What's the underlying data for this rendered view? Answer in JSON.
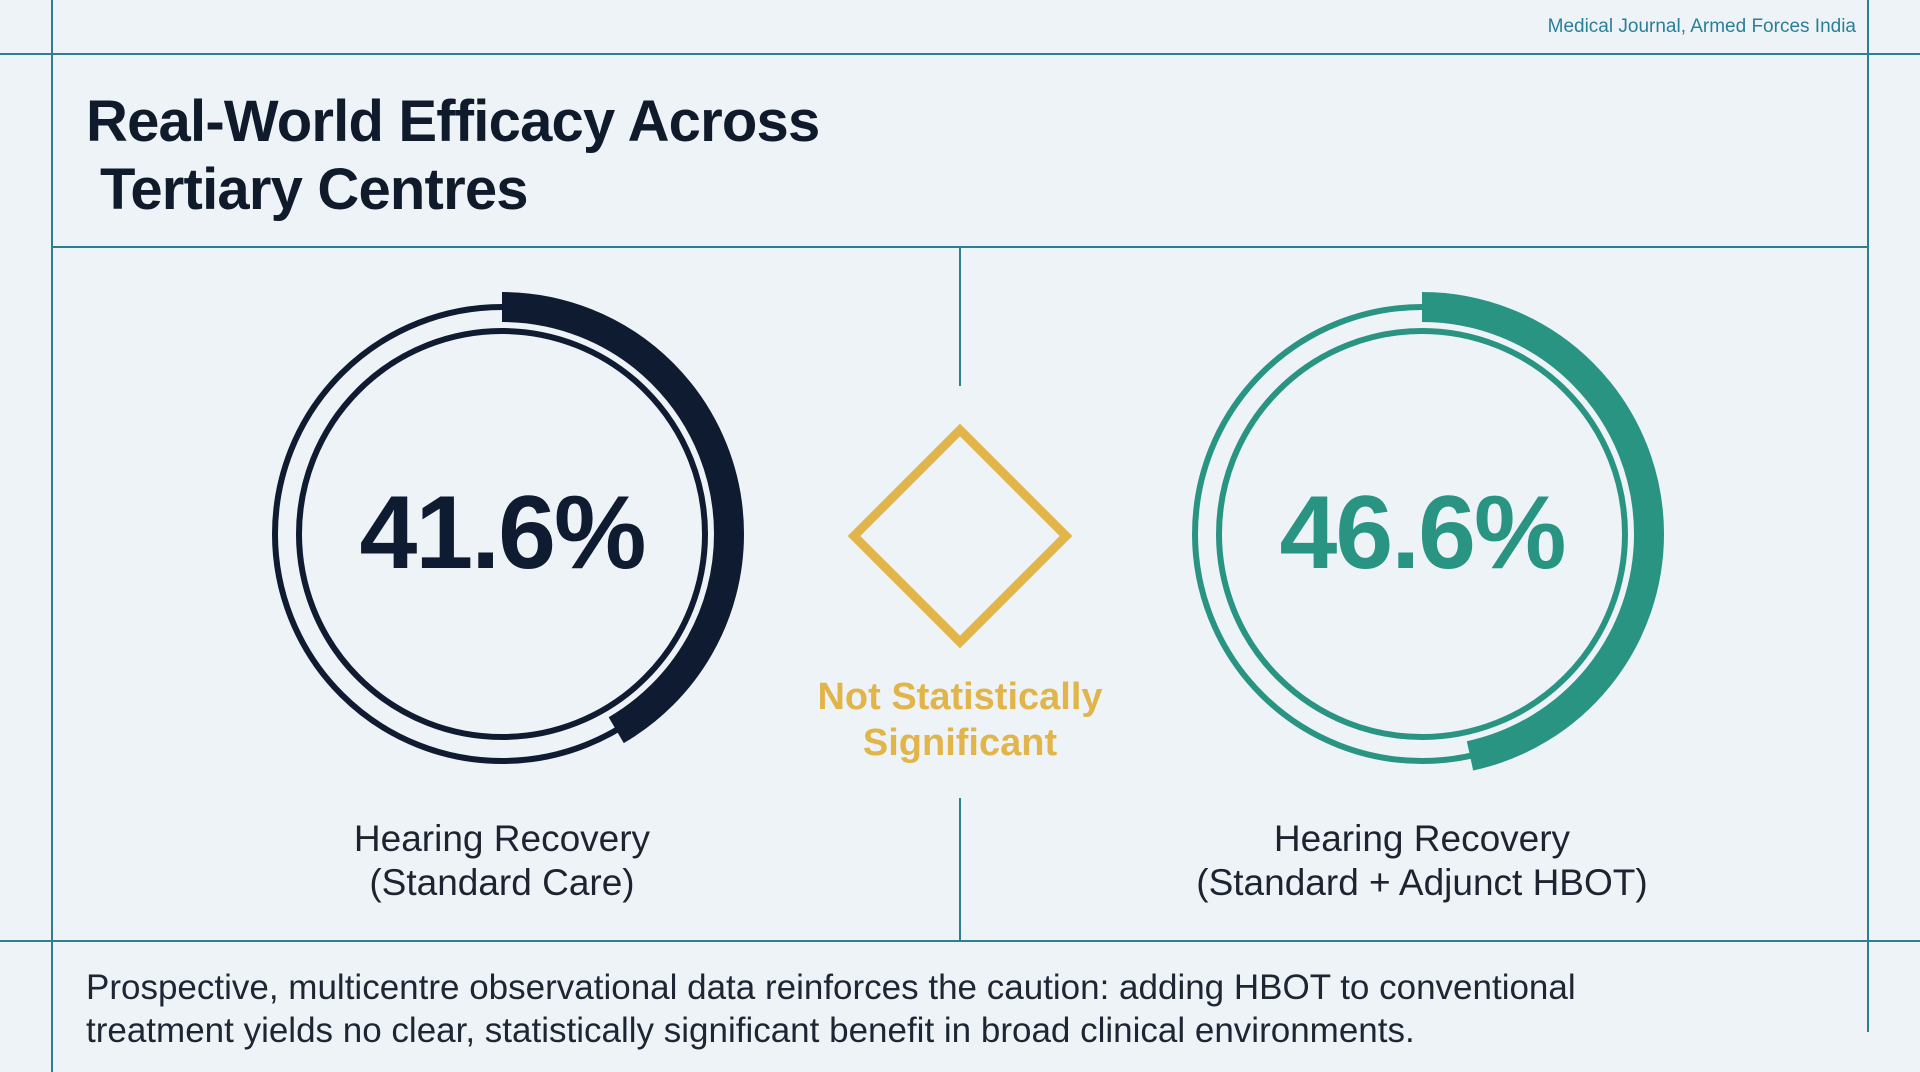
{
  "source": "Medical Journal, Armed Forces India",
  "title": [
    "Real-World Efficacy Across",
    "Tertiary Centres"
  ],
  "comparison": [
    {
      "value": "41.6%",
      "fraction": 0.416,
      "label": [
        "Hearing Recovery",
        "(Standard Care)"
      ],
      "color": "#0f1b30"
    },
    {
      "value": "46.6%",
      "fraction": 0.466,
      "label": [
        "Hearing Recovery",
        "(Standard + Adjunct HBOT)"
      ],
      "color": "#2a9483"
    }
  ],
  "verdict": {
    "text": [
      "Not Statistically",
      "Significant"
    ],
    "color": "#e2b54a"
  },
  "caption": [
    "Prospective, multicentre observational data reinforces the caution: adding HBOT to conventional",
    "treatment yields no clear, statistically significant benefit in broad clinical environments."
  ]
}
